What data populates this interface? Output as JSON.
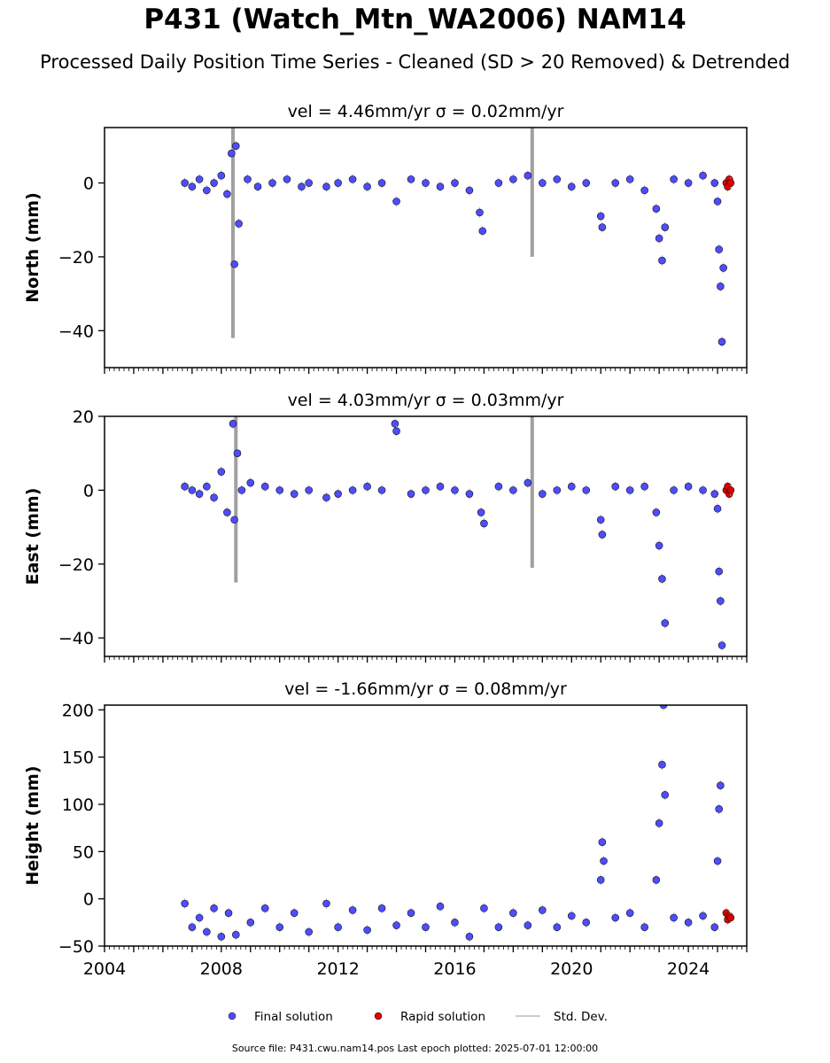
{
  "figure": {
    "title": "P431 (Watch_Mtn_WA2006) NAM14",
    "subtitle": "Processed Daily Position Time Series - Cleaned (SD > 20 Removed) & Detrended",
    "footer": "Source file: P431.cwu.nam14.pos  Last epoch plotted: 2025-07-01 12:00:00"
  },
  "colors": {
    "final": "#4d4dff",
    "rapid": "#dd0000",
    "stddev": "#bbbbbb"
  },
  "chart_data": [
    {
      "type": "scatter",
      "title": "vel = 4.46mm/yr   σ = 0.02mm/yr",
      "ylabel": "North (mm)",
      "xlim": [
        2004,
        2026
      ],
      "ylim": [
        -50,
        15
      ],
      "yticks": [
        0,
        -20,
        -40
      ],
      "xticks": [
        2004,
        2008,
        2012,
        2016,
        2020,
        2024
      ],
      "series": [
        {
          "name": "Final solution",
          "x": [
            2006.75,
            2007.0,
            2007.25,
            2007.5,
            2007.75,
            2008.0,
            2008.2,
            2008.35,
            2008.45,
            2008.5,
            2008.6,
            2008.9,
            2009.25,
            2009.75,
            2010.25,
            2010.75,
            2011.0,
            2011.6,
            2012.0,
            2012.5,
            2013.0,
            2013.5,
            2014.0,
            2014.5,
            2015.0,
            2015.5,
            2016.0,
            2016.5,
            2016.85,
            2016.95,
            2017.5,
            2018.0,
            2018.5,
            2019.0,
            2019.5,
            2020.0,
            2020.5,
            2021.0,
            2021.05,
            2021.5,
            2022.0,
            2022.5,
            2022.9,
            2023.0,
            2023.1,
            2023.2,
            2023.5,
            2024.0,
            2024.5,
            2024.9,
            2025.0,
            2025.05,
            2025.1,
            2025.15,
            2025.2
          ],
          "y": [
            0,
            -1,
            1,
            -2,
            0,
            2,
            -3,
            8,
            -22,
            10,
            -11,
            1,
            -1,
            0,
            1,
            -1,
            0,
            -1,
            0,
            1,
            -1,
            0,
            -5,
            1,
            0,
            -1,
            0,
            -2,
            -8,
            -13,
            0,
            1,
            2,
            0,
            1,
            -1,
            0,
            -9,
            -12,
            0,
            1,
            -2,
            -7,
            -15,
            -21,
            -12,
            1,
            0,
            2,
            0,
            -5,
            -18,
            -28,
            -43,
            -23
          ]
        },
        {
          "name": "Rapid solution",
          "x": [
            2025.3,
            2025.35,
            2025.4,
            2025.45
          ],
          "y": [
            0,
            -1,
            1,
            0
          ]
        }
      ],
      "stddev_spikes": [
        {
          "x": 2008.4,
          "low": -42,
          "high": 15
        },
        {
          "x": 2018.65,
          "low": -20,
          "high": 15
        }
      ],
      "stddev_label": "Std. Dev."
    },
    {
      "type": "scatter",
      "title": "vel = 4.03mm/yr   σ = 0.03mm/yr",
      "ylabel": "East (mm)",
      "xlim": [
        2004,
        2026
      ],
      "ylim": [
        -45,
        20
      ],
      "yticks": [
        20,
        0,
        -20,
        -40
      ],
      "xticks": [
        2004,
        2008,
        2012,
        2016,
        2020,
        2024
      ],
      "series": [
        {
          "name": "Final solution",
          "x": [
            2006.75,
            2007.0,
            2007.25,
            2007.5,
            2007.75,
            2008.0,
            2008.2,
            2008.4,
            2008.45,
            2008.55,
            2008.7,
            2009.0,
            2009.5,
            2010.0,
            2010.5,
            2011.0,
            2011.6,
            2012.0,
            2012.5,
            2013.0,
            2013.5,
            2013.95,
            2014.0,
            2014.5,
            2015.0,
            2015.5,
            2016.0,
            2016.5,
            2016.9,
            2017.0,
            2017.5,
            2018.0,
            2018.5,
            2019.0,
            2019.5,
            2020.0,
            2020.5,
            2021.0,
            2021.05,
            2021.5,
            2022.0,
            2022.5,
            2022.9,
            2023.0,
            2023.1,
            2023.2,
            2023.5,
            2024.0,
            2024.5,
            2024.9,
            2025.0,
            2025.05,
            2025.1,
            2025.15
          ],
          "y": [
            1,
            0,
            -1,
            1,
            -2,
            5,
            -6,
            18,
            -8,
            10,
            0,
            2,
            1,
            0,
            -1,
            0,
            -2,
            -1,
            0,
            1,
            0,
            18,
            16,
            -1,
            0,
            1,
            0,
            -1,
            -6,
            -9,
            1,
            0,
            2,
            -1,
            0,
            1,
            0,
            -8,
            -12,
            1,
            0,
            1,
            -6,
            -15,
            -24,
            -36,
            0,
            1,
            0,
            -1,
            -5,
            -22,
            -30,
            -42
          ]
        },
        {
          "name": "Rapid solution",
          "x": [
            2025.3,
            2025.35,
            2025.4,
            2025.45
          ],
          "y": [
            0,
            1,
            -1,
            0
          ]
        }
      ],
      "stddev_spikes": [
        {
          "x": 2008.5,
          "low": -25,
          "high": 20
        },
        {
          "x": 2018.65,
          "low": -21,
          "high": 20
        }
      ],
      "stddev_label": "Std. Dev."
    },
    {
      "type": "scatter",
      "title": "vel = -1.66mm/yr   σ = 0.08mm/yr",
      "ylabel": "Height (mm)",
      "xlabel": "",
      "xlim": [
        2004,
        2026
      ],
      "ylim": [
        -50,
        205
      ],
      "yticks": [
        200,
        150,
        100,
        50,
        0,
        -50
      ],
      "xticks": [
        2004,
        2008,
        2012,
        2016,
        2020,
        2024
      ],
      "series": [
        {
          "name": "Final solution",
          "x": [
            2006.75,
            2007.0,
            2007.25,
            2007.5,
            2007.75,
            2008.0,
            2008.25,
            2008.5,
            2009.0,
            2009.5,
            2010.0,
            2010.5,
            2011.0,
            2011.6,
            2012.0,
            2012.5,
            2013.0,
            2013.5,
            2014.0,
            2014.5,
            2015.0,
            2015.5,
            2016.0,
            2016.5,
            2017.0,
            2017.5,
            2018.0,
            2018.5,
            2019.0,
            2019.5,
            2020.0,
            2020.5,
            2021.0,
            2021.05,
            2021.1,
            2021.5,
            2022.0,
            2022.5,
            2022.9,
            2023.0,
            2023.1,
            2023.15,
            2023.2,
            2023.5,
            2024.0,
            2024.5,
            2024.9,
            2025.0,
            2025.05,
            2025.1
          ],
          "y": [
            -5,
            -30,
            -20,
            -35,
            -10,
            -40,
            -15,
            -38,
            -25,
            -10,
            -30,
            -15,
            -35,
            -5,
            -30,
            -12,
            -33,
            -10,
            -28,
            -15,
            -30,
            -8,
            -25,
            -40,
            -10,
            -30,
            -15,
            -28,
            -12,
            -30,
            -18,
            -25,
            20,
            60,
            40,
            -20,
            -15,
            -30,
            20,
            80,
            142,
            205,
            110,
            -20,
            -25,
            -18,
            -30,
            40,
            95,
            120
          ]
        },
        {
          "name": "Rapid solution",
          "x": [
            2025.3,
            2025.35,
            2025.4,
            2025.45
          ],
          "y": [
            -15,
            -22,
            -18,
            -20
          ]
        }
      ],
      "stddev_spikes": [],
      "stddev_label": "Std. Dev."
    }
  ]
}
